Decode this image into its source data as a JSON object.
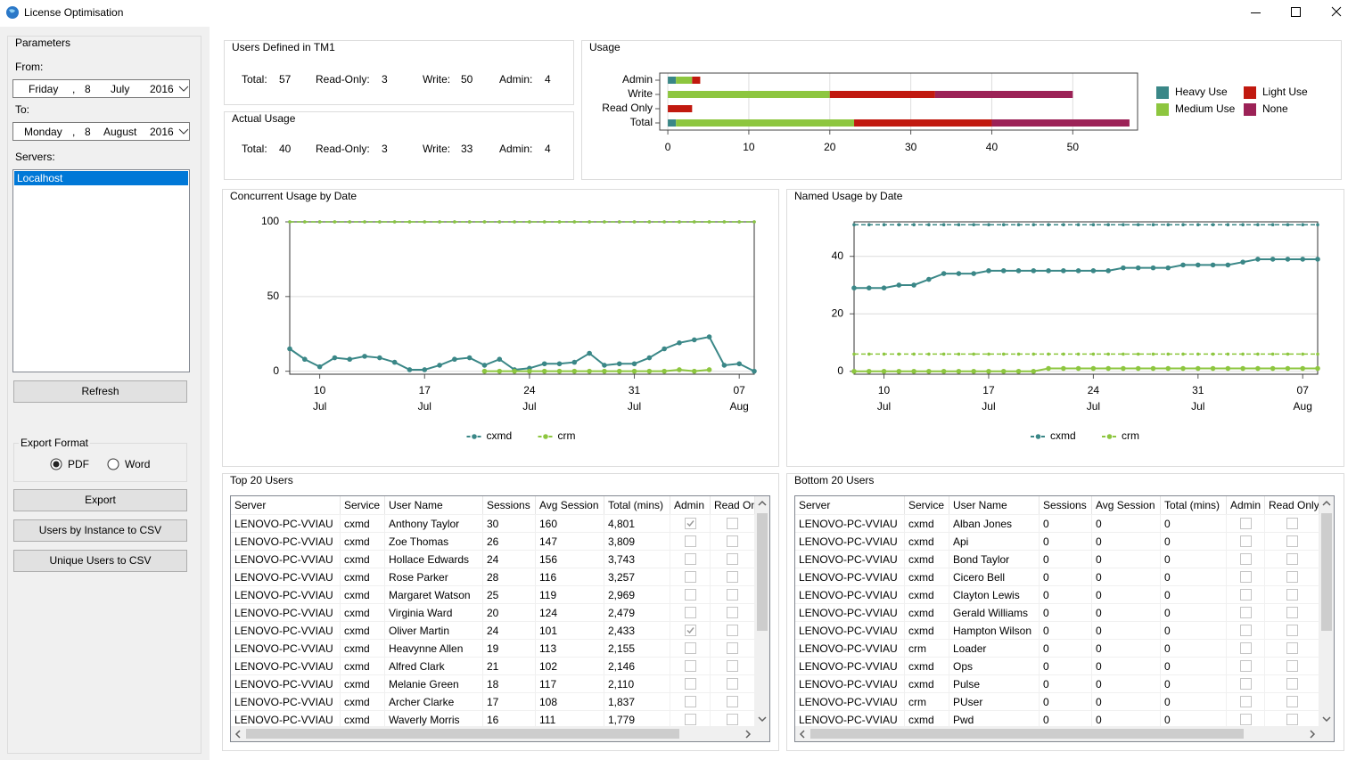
{
  "window": {
    "title": "License Optimisation"
  },
  "parameters": {
    "title": "Parameters",
    "from_label": "From:",
    "from_date": [
      "Friday",
      ",",
      "8",
      "July",
      "2016"
    ],
    "to_label": "To:",
    "to_date": [
      "Monday",
      ",",
      "8",
      "August",
      "2016"
    ],
    "servers_label": "Servers:",
    "servers": [
      "Localhost"
    ],
    "selected_server": 0,
    "refresh": "Refresh",
    "export_format": {
      "title": "Export Format",
      "options": [
        "PDF",
        "Word"
      ],
      "selected": 0
    },
    "buttons": [
      "Export",
      "Users by Instance to CSV",
      "Unique Users to CSV"
    ]
  },
  "users_defined": {
    "title": "Users Defined in TM1",
    "fields": [
      {
        "label": "Total:",
        "value": 57
      },
      {
        "label": "Read-Only:",
        "value": 3
      },
      {
        "label": "Write:",
        "value": 50
      },
      {
        "label": "Admin:",
        "value": 4
      }
    ]
  },
  "actual_usage": {
    "title": "Actual Usage",
    "fields": [
      {
        "label": "Total:",
        "value": 40
      },
      {
        "label": "Read-Only:",
        "value": 3
      },
      {
        "label": "Write:",
        "value": 33
      },
      {
        "label": "Admin:",
        "value": 4
      }
    ]
  },
  "chart_data": [
    {
      "type": "bar",
      "orientation": "horizontal",
      "stacked": true,
      "title": "Usage",
      "categories": [
        "Admin",
        "Write",
        "Read Only",
        "Total"
      ],
      "series": [
        {
          "name": "Heavy Use",
          "color": "#3a8787",
          "values": [
            1,
            0,
            0,
            1
          ]
        },
        {
          "name": "Medium Use",
          "color": "#8dc63f",
          "values": [
            2,
            20,
            0,
            22
          ]
        },
        {
          "name": "Light Use",
          "color": "#c1190f",
          "values": [
            1,
            13,
            3,
            17
          ]
        },
        {
          "name": "None",
          "color": "#9c2257",
          "values": [
            0,
            17,
            0,
            17
          ]
        }
      ],
      "xlim": [
        -1,
        58
      ],
      "xticks": [
        0,
        10,
        20,
        30,
        40,
        50
      ],
      "grid": true,
      "legend": "right"
    },
    {
      "type": "line",
      "title": "Concurrent Usage by Date",
      "x": [
        "8 Jul",
        "9 Jul",
        "10 Jul",
        "11 Jul",
        "12 Jul",
        "13 Jul",
        "14 Jul",
        "15 Jul",
        "16 Jul",
        "17 Jul",
        "18 Jul",
        "19 Jul",
        "20 Jul",
        "21 Jul",
        "22 Jul",
        "23 Jul",
        "24 Jul",
        "25 Jul",
        "26 Jul",
        "27 Jul",
        "28 Jul",
        "29 Jul",
        "30 Jul",
        "31 Jul",
        "1 Aug",
        "2 Aug",
        "3 Aug",
        "4 Aug",
        "5 Aug",
        "6 Aug",
        "7 Aug",
        "8 Aug"
      ],
      "series": [
        {
          "name": "cxmd",
          "color": "#3a8787",
          "limit": 100,
          "values": [
            15,
            8,
            3,
            9,
            8,
            10,
            9,
            6,
            1,
            1,
            4,
            8,
            9,
            4,
            8,
            1,
            2,
            5,
            5,
            6,
            12,
            4,
            5,
            5,
            9,
            15,
            19,
            21,
            23,
            4,
            5,
            0
          ]
        },
        {
          "name": "crm",
          "color": "#8dc63f",
          "limit": 100,
          "values": [
            null,
            null,
            null,
            null,
            null,
            null,
            null,
            null,
            null,
            null,
            null,
            null,
            null,
            0,
            0,
            0,
            0,
            0,
            0,
            0,
            0,
            0,
            0,
            0,
            0,
            0,
            1,
            0,
            1,
            null,
            null,
            null
          ]
        }
      ],
      "ylim": [
        -2,
        100
      ],
      "yticks": [
        0,
        50,
        100
      ],
      "xticks": [
        {
          "value": "10 Jul",
          "label": [
            "10",
            "Jul"
          ]
        },
        {
          "value": "17 Jul",
          "label": [
            "17",
            "Jul"
          ]
        },
        {
          "value": "24 Jul",
          "label": [
            "24",
            "Jul"
          ]
        },
        {
          "value": "31 Jul",
          "label": [
            "31",
            "Jul"
          ]
        },
        {
          "value": "7 Aug",
          "label": [
            "07",
            "Aug"
          ]
        }
      ],
      "grid": true,
      "legend": "bottom"
    },
    {
      "type": "line",
      "title": "Named Usage by Date",
      "x": [
        "8 Jul",
        "9 Jul",
        "10 Jul",
        "11 Jul",
        "12 Jul",
        "13 Jul",
        "14 Jul",
        "15 Jul",
        "16 Jul",
        "17 Jul",
        "18 Jul",
        "19 Jul",
        "20 Jul",
        "21 Jul",
        "22 Jul",
        "23 Jul",
        "24 Jul",
        "25 Jul",
        "26 Jul",
        "27 Jul",
        "28 Jul",
        "29 Jul",
        "30 Jul",
        "31 Jul",
        "1 Aug",
        "2 Aug",
        "3 Aug",
        "4 Aug",
        "5 Aug",
        "6 Aug",
        "7 Aug",
        "8 Aug"
      ],
      "series": [
        {
          "name": "cxmd",
          "color": "#3a8787",
          "limit": 51,
          "values": [
            29,
            29,
            29,
            30,
            30,
            32,
            34,
            34,
            34,
            35,
            35,
            35,
            35,
            35,
            35,
            35,
            35,
            35,
            36,
            36,
            36,
            36,
            37,
            37,
            37,
            37,
            38,
            39,
            39,
            39,
            39,
            39
          ]
        },
        {
          "name": "crm",
          "color": "#8dc63f",
          "limit": 6,
          "values": [
            0,
            0,
            0,
            0,
            0,
            0,
            0,
            0,
            0,
            0,
            0,
            0,
            0,
            1,
            1,
            1,
            1,
            1,
            1,
            1,
            1,
            1,
            1,
            1,
            1,
            1,
            1,
            1,
            1,
            1,
            1,
            1
          ]
        }
      ],
      "ylim": [
        -1,
        52
      ],
      "yticks": [
        0,
        20,
        40
      ],
      "xticks": [
        {
          "value": "10 Jul",
          "label": [
            "10",
            "Jul"
          ]
        },
        {
          "value": "17 Jul",
          "label": [
            "17",
            "Jul"
          ]
        },
        {
          "value": "24 Jul",
          "label": [
            "24",
            "Jul"
          ]
        },
        {
          "value": "31 Jul",
          "label": [
            "31",
            "Jul"
          ]
        },
        {
          "value": "7 Aug",
          "label": [
            "07",
            "Aug"
          ]
        }
      ],
      "grid": true,
      "legend": "bottom"
    }
  ],
  "top_users": {
    "title": "Top 20 Users",
    "columns": [
      "Server",
      "Service",
      "User Name",
      "Sessions",
      "Avg Session",
      "Total (mins)",
      "Admin",
      "Read Only"
    ],
    "rows": [
      [
        "LENOVO-PC-VVIAU",
        "cxmd",
        "Anthony Taylor",
        30,
        160,
        "4,801",
        true,
        false
      ],
      [
        "LENOVO-PC-VVIAU",
        "cxmd",
        "Zoe Thomas",
        26,
        147,
        "3,809",
        false,
        false
      ],
      [
        "LENOVO-PC-VVIAU",
        "cxmd",
        "Hollace Edwards",
        24,
        156,
        "3,743",
        false,
        false
      ],
      [
        "LENOVO-PC-VVIAU",
        "cxmd",
        "Rose Parker",
        28,
        116,
        "3,257",
        false,
        false
      ],
      [
        "LENOVO-PC-VVIAU",
        "cxmd",
        "Margaret Watson",
        25,
        119,
        "2,969",
        false,
        false
      ],
      [
        "LENOVO-PC-VVIAU",
        "cxmd",
        "Virginia Ward",
        20,
        124,
        "2,479",
        false,
        false
      ],
      [
        "LENOVO-PC-VVIAU",
        "cxmd",
        "Oliver Martin",
        24,
        101,
        "2,433",
        true,
        false
      ],
      [
        "LENOVO-PC-VVIAU",
        "cxmd",
        "Heavynne Allen",
        19,
        113,
        "2,155",
        false,
        false
      ],
      [
        "LENOVO-PC-VVIAU",
        "cxmd",
        "Alfred Clark",
        21,
        102,
        "2,146",
        false,
        false
      ],
      [
        "LENOVO-PC-VVIAU",
        "cxmd",
        "Melanie Green",
        18,
        117,
        "2,110",
        false,
        false
      ],
      [
        "LENOVO-PC-VVIAU",
        "cxmd",
        "Archer Clarke",
        17,
        108,
        "1,837",
        false,
        false
      ],
      [
        "LENOVO-PC-VVIAU",
        "cxmd",
        "Waverly Morris",
        16,
        111,
        "1,779",
        false,
        false
      ]
    ]
  },
  "bottom_users": {
    "title": "Bottom 20 Users",
    "columns": [
      "Server",
      "Service",
      "User Name",
      "Sessions",
      "Avg Session",
      "Total (mins)",
      "Admin",
      "Read Only"
    ],
    "rows": [
      [
        "LENOVO-PC-VVIAU",
        "cxmd",
        "Alban Jones",
        0,
        0,
        0,
        false,
        false
      ],
      [
        "LENOVO-PC-VVIAU",
        "cxmd",
        "Api",
        0,
        0,
        0,
        false,
        false
      ],
      [
        "LENOVO-PC-VVIAU",
        "cxmd",
        "Bond Taylor",
        0,
        0,
        0,
        false,
        false
      ],
      [
        "LENOVO-PC-VVIAU",
        "cxmd",
        "Cicero Bell",
        0,
        0,
        0,
        false,
        false
      ],
      [
        "LENOVO-PC-VVIAU",
        "cxmd",
        "Clayton Lewis",
        0,
        0,
        0,
        false,
        false
      ],
      [
        "LENOVO-PC-VVIAU",
        "cxmd",
        "Gerald Williams",
        0,
        0,
        0,
        false,
        false
      ],
      [
        "LENOVO-PC-VVIAU",
        "cxmd",
        "Hampton Wilson",
        0,
        0,
        0,
        false,
        false
      ],
      [
        "LENOVO-PC-VVIAU",
        "crm",
        "Loader",
        0,
        0,
        0,
        false,
        false
      ],
      [
        "LENOVO-PC-VVIAU",
        "cxmd",
        "Ops",
        0,
        0,
        0,
        false,
        false
      ],
      [
        "LENOVO-PC-VVIAU",
        "cxmd",
        "Pulse",
        0,
        0,
        0,
        false,
        false
      ],
      [
        "LENOVO-PC-VVIAU",
        "crm",
        "PUser",
        0,
        0,
        0,
        false,
        false
      ],
      [
        "LENOVO-PC-VVIAU",
        "cxmd",
        "Pwd",
        0,
        0,
        0,
        false,
        false
      ]
    ]
  }
}
